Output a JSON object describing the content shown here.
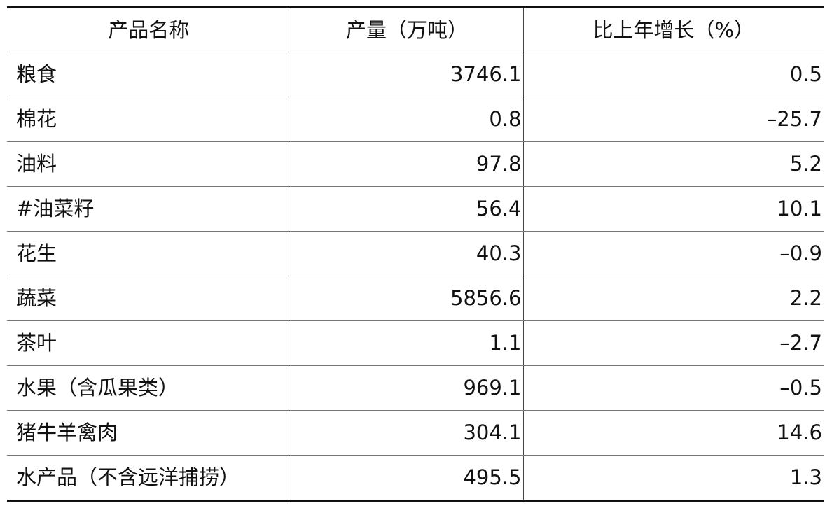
{
  "table": {
    "headers": [
      "产品名称",
      "产量（万吨）",
      "比上年增长（%）"
    ],
    "rows": [
      [
        "粮食",
        "3746.1",
        "0.5"
      ],
      [
        "棉花",
        "0.8",
        "–25.7"
      ],
      [
        "油料",
        "97.8",
        "5.2"
      ],
      [
        "#油菜籽",
        "56.4",
        "10.1"
      ],
      [
        "花生",
        "40.3",
        "–0.9"
      ],
      [
        "蔬菜",
        "5856.6",
        "2.2"
      ],
      [
        "茶叶",
        "1.1",
        "–2.7"
      ],
      [
        "水果（含瓜果类）",
        "969.1",
        "–0.5"
      ],
      [
        "猪牛羊禽肉",
        "304.1",
        "14.6"
      ],
      [
        "水产品（不含远洋捕捞）",
        "495.5",
        "1.3"
      ]
    ]
  }
}
